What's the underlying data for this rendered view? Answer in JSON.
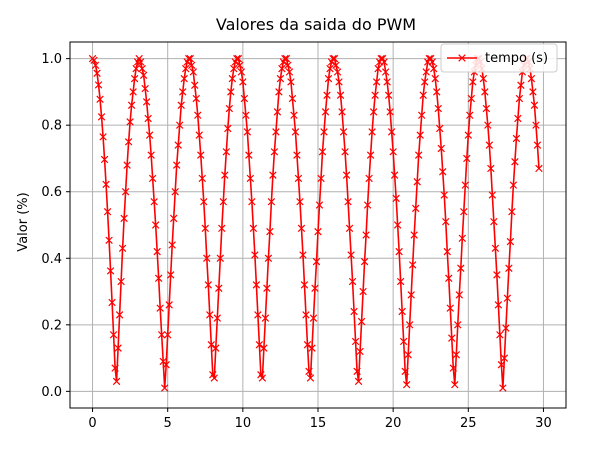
{
  "chart_data": {
    "type": "line",
    "title": "Valores da saida do PWM",
    "xlabel": "",
    "ylabel": "Valor (%)",
    "xlim": [
      -1.5,
      31.5
    ],
    "ylim": [
      -0.05,
      1.05
    ],
    "xticks": [
      0,
      5,
      10,
      15,
      20,
      25,
      30
    ],
    "yticks": [
      0.0,
      0.2,
      0.4,
      0.6,
      0.8,
      1.0
    ],
    "xtick_labels": [
      "0",
      "5",
      "10",
      "15",
      "20",
      "25",
      "30"
    ],
    "ytick_labels": [
      "0.0",
      "0.2",
      "0.4",
      "0.6",
      "0.8",
      "1.0"
    ],
    "grid": true,
    "legend_position": "upper right",
    "series": [
      {
        "name": "tempo (s)",
        "color": "#ff0000",
        "marker": "x",
        "x_start": 0,
        "x_step": 0.1,
        "values": [
          1.0,
          0.995,
          0.98,
          0.956,
          0.921,
          0.878,
          0.825,
          0.765,
          0.697,
          0.622,
          0.54,
          0.454,
          0.362,
          0.267,
          0.17,
          0.07,
          0.03,
          0.13,
          0.23,
          0.33,
          0.43,
          0.52,
          0.6,
          0.68,
          0.75,
          0.81,
          0.86,
          0.9,
          0.94,
          0.97,
          0.99,
          1.0,
          0.99,
          0.97,
          0.95,
          0.91,
          0.87,
          0.82,
          0.77,
          0.71,
          0.64,
          0.57,
          0.5,
          0.42,
          0.34,
          0.25,
          0.17,
          0.09,
          0.01,
          0.08,
          0.17,
          0.26,
          0.35,
          0.44,
          0.52,
          0.6,
          0.68,
          0.74,
          0.8,
          0.86,
          0.9,
          0.94,
          0.97,
          0.99,
          1.0,
          1.0,
          0.98,
          0.96,
          0.92,
          0.88,
          0.83,
          0.77,
          0.71,
          0.64,
          0.57,
          0.49,
          0.4,
          0.32,
          0.23,
          0.14,
          0.05,
          0.04,
          0.13,
          0.22,
          0.31,
          0.4,
          0.49,
          0.57,
          0.65,
          0.72,
          0.79,
          0.85,
          0.9,
          0.94,
          0.97,
          0.99,
          1.0,
          1.0,
          0.98,
          0.96,
          0.93,
          0.88,
          0.83,
          0.78,
          0.71,
          0.64,
          0.57,
          0.49,
          0.41,
          0.32,
          0.23,
          0.14,
          0.05,
          0.04,
          0.13,
          0.22,
          0.31,
          0.4,
          0.48,
          0.57,
          0.65,
          0.72,
          0.78,
          0.84,
          0.9,
          0.94,
          0.97,
          0.99,
          1.0,
          1.0,
          0.98,
          0.96,
          0.93,
          0.88,
          0.83,
          0.78,
          0.71,
          0.64,
          0.57,
          0.49,
          0.41,
          0.32,
          0.23,
          0.14,
          0.06,
          0.04,
          0.13,
          0.22,
          0.31,
          0.39,
          0.48,
          0.56,
          0.64,
          0.72,
          0.78,
          0.84,
          0.89,
          0.94,
          0.97,
          0.99,
          1.0,
          1.0,
          0.98,
          0.96,
          0.93,
          0.89,
          0.84,
          0.78,
          0.72,
          0.65,
          0.57,
          0.49,
          0.41,
          0.33,
          0.24,
          0.15,
          0.06,
          0.03,
          0.12,
          0.21,
          0.3,
          0.39,
          0.47,
          0.56,
          0.64,
          0.71,
          0.78,
          0.84,
          0.89,
          0.93,
          0.97,
          0.99,
          1.0,
          1.0,
          0.99,
          0.96,
          0.93,
          0.89,
          0.84,
          0.78,
          0.72,
          0.65,
          0.58,
          0.5,
          0.42,
          0.33,
          0.24,
          0.15,
          0.06,
          0.02,
          0.11,
          0.2,
          0.29,
          0.38,
          0.47,
          0.55,
          0.63,
          0.71,
          0.77,
          0.83,
          0.89,
          0.93,
          0.96,
          0.99,
          1.0,
          1.0,
          0.99,
          0.97,
          0.94,
          0.9,
          0.85,
          0.79,
          0.73,
          0.66,
          0.59,
          0.51,
          0.42,
          0.34,
          0.25,
          0.16,
          0.07,
          0.02,
          0.11,
          0.2,
          0.29,
          0.37,
          0.46,
          0.54,
          0.62,
          0.7,
          0.77,
          0.83,
          0.88,
          0.93,
          0.96,
          0.98,
          1.0,
          1.0,
          0.99,
          0.97,
          0.94,
          0.9,
          0.85,
          0.8,
          0.74,
          0.67,
          0.59,
          0.51,
          0.43,
          0.35,
          0.26,
          0.17,
          0.08,
          0.01,
          0.1,
          0.19,
          0.28,
          0.37,
          0.45,
          0.54,
          0.62,
          0.69,
          0.76,
          0.82,
          0.88,
          0.92,
          0.96,
          0.98,
          1.0,
          1.0,
          0.99,
          0.97,
          0.94,
          0.9,
          0.86,
          0.8,
          0.74,
          0.67
        ]
      }
    ]
  }
}
